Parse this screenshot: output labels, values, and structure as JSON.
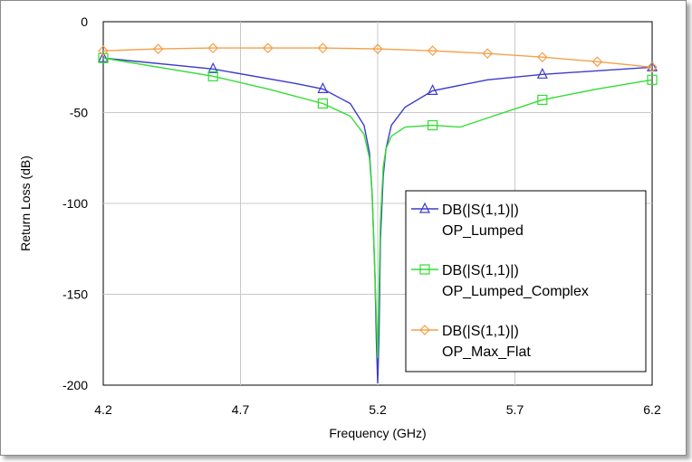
{
  "chart_data": {
    "type": "line",
    "title": "",
    "xlabel": "Frequency (GHz)",
    "ylabel": "Return Loss (dB)",
    "xlim": [
      4.2,
      6.2
    ],
    "ylim": [
      -200,
      0
    ],
    "x_ticks": [
      "4.2",
      "4.7",
      "5.2",
      "5.7",
      "6.2"
    ],
    "y_ticks": [
      "0",
      "-50",
      "-100",
      "-150",
      "-200"
    ],
    "grid": true,
    "legend_position": "bottom-right",
    "series": [
      {
        "name": "DB(|S(1,1)|)",
        "name2": "OP_Lumped",
        "color": "#3b3bcc",
        "marker": "triangle",
        "x": [
          4.2,
          4.6,
          4.9,
          5.0,
          5.1,
          5.15,
          5.17,
          5.18,
          5.19,
          5.195,
          5.2,
          5.205,
          5.21,
          5.22,
          5.23,
          5.25,
          5.3,
          5.4,
          5.6,
          5.8,
          6.2
        ],
        "y": [
          -20,
          -26,
          -34,
          -37,
          -45,
          -57,
          -72,
          -95,
          -140,
          -175,
          -199,
          -172,
          -120,
          -85,
          -70,
          -57,
          -47,
          -38,
          -32,
          -29,
          -25
        ],
        "marker_x": [
          4.2,
          4.6,
          5.0,
          5.4,
          5.8,
          6.2
        ]
      },
      {
        "name": "DB(|S(1,1)|)",
        "name2": "OP_Lumped_Complex",
        "color": "#33dd33",
        "marker": "square",
        "x": [
          4.2,
          4.6,
          4.8,
          5.0,
          5.1,
          5.15,
          5.17,
          5.18,
          5.19,
          5.2,
          5.21,
          5.22,
          5.23,
          5.25,
          5.3,
          5.4,
          5.5,
          5.6,
          5.8,
          6.0,
          6.2
        ],
        "y": [
          -20,
          -30,
          -37,
          -45,
          -52,
          -62,
          -75,
          -95,
          -140,
          -185,
          -110,
          -80,
          -70,
          -63,
          -58,
          -57,
          -58,
          -53,
          -43,
          -37,
          -32
        ],
        "marker_x": [
          4.2,
          4.6,
          5.0,
          5.4,
          5.8,
          6.2
        ]
      },
      {
        "name": "DB(|S(1,1)|)",
        "name2": "OP_Max_Flat",
        "color": "#f5a04a",
        "marker": "diamond",
        "x": [
          4.2,
          4.4,
          4.6,
          4.8,
          5.0,
          5.2,
          5.4,
          5.6,
          5.8,
          6.0,
          6.2
        ],
        "y": [
          -16,
          -15,
          -14.5,
          -14.5,
          -14.5,
          -15,
          -16,
          -17.5,
          -19.5,
          -22,
          -25
        ],
        "marker_x": [
          4.2,
          4.4,
          4.6,
          4.8,
          5.0,
          5.2,
          5.4,
          5.6,
          5.8,
          6.0,
          6.2
        ]
      }
    ]
  }
}
